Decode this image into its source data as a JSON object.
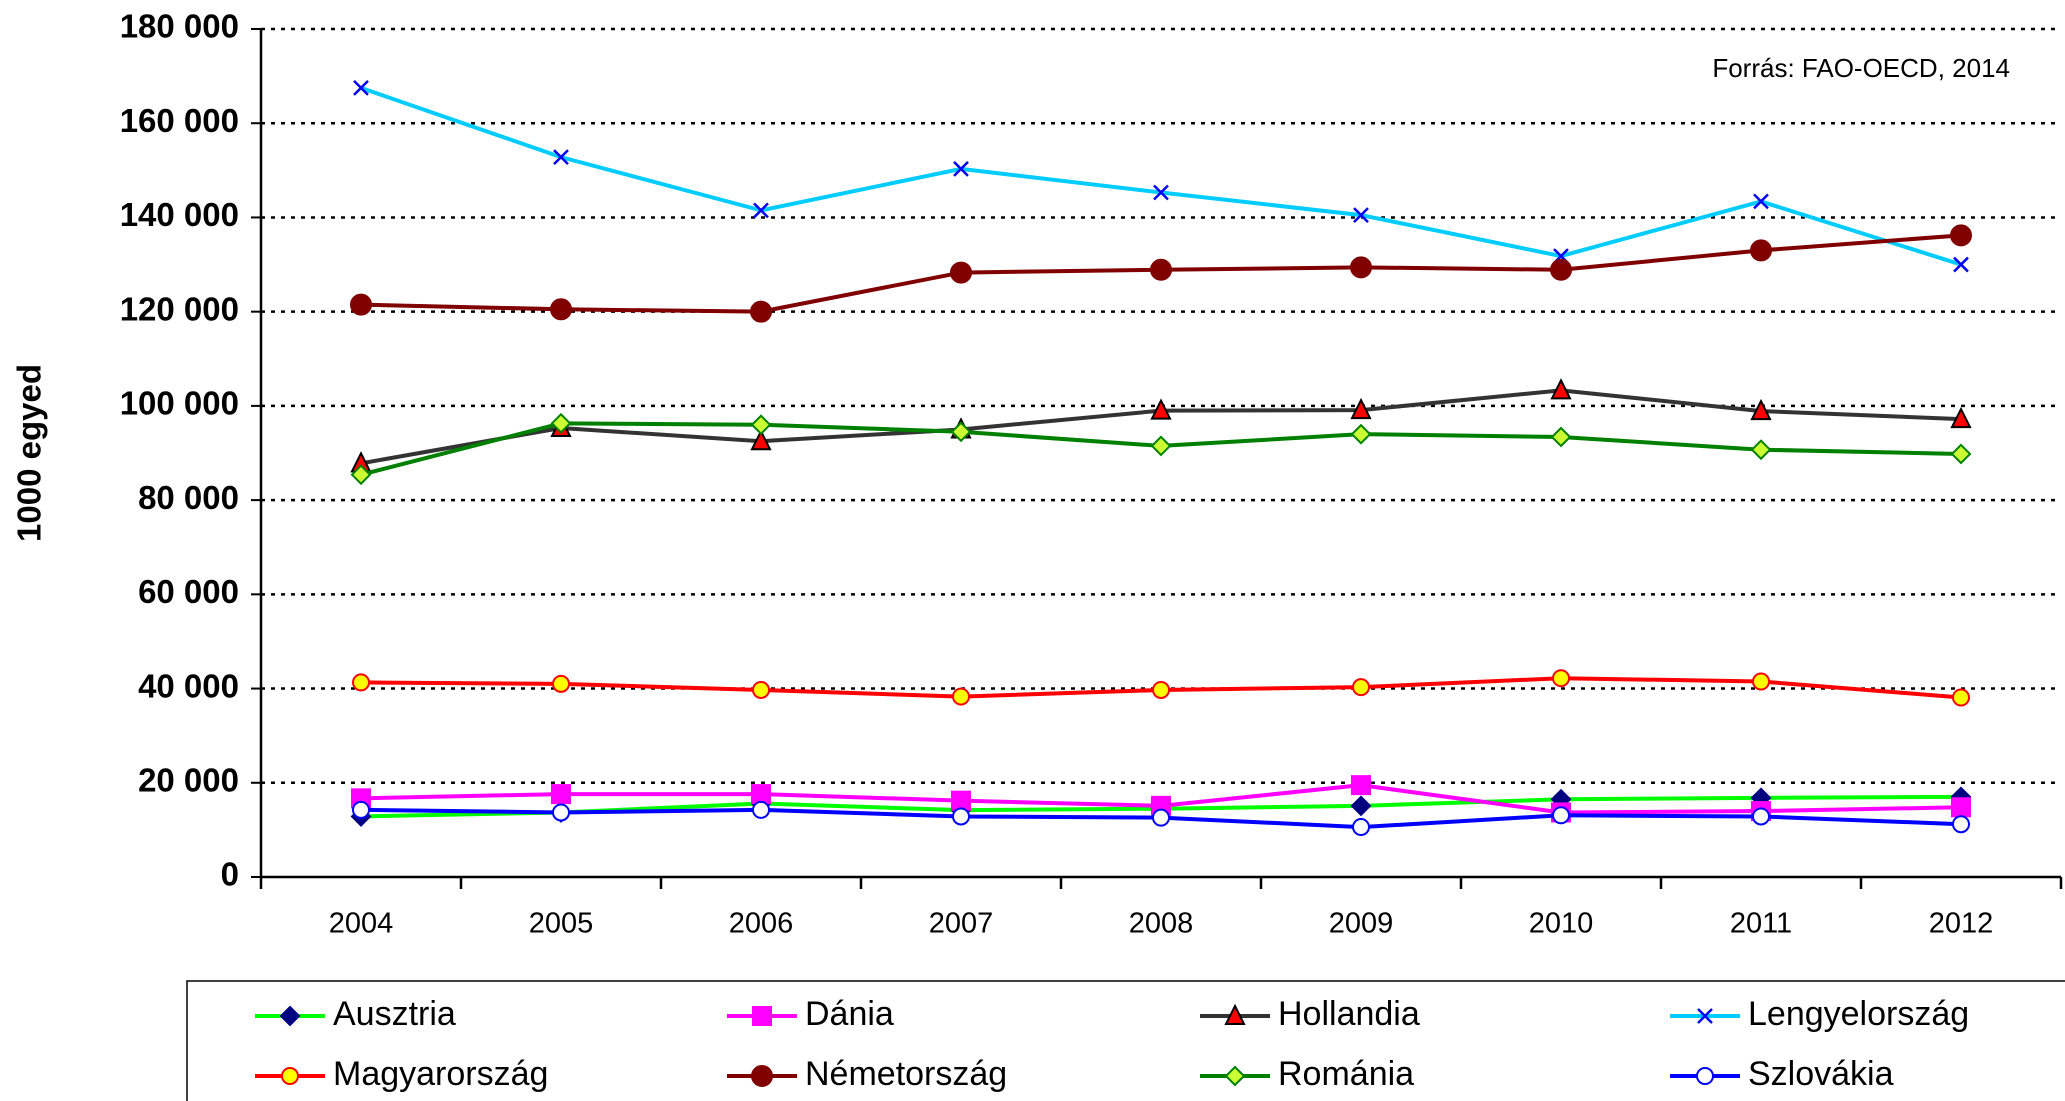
{
  "chart_data": {
    "type": "line",
    "y_label": "1000 egyed",
    "annotation": "Forrás: FAO-OECD, 2014",
    "categories": [
      "2004",
      "2005",
      "2006",
      "2007",
      "2008",
      "2009",
      "2010",
      "2011",
      "2012"
    ],
    "ylim": [
      0,
      180000
    ],
    "yticks": [
      {
        "value": 0,
        "label": "0"
      },
      {
        "value": 20000,
        "label": "20 000"
      },
      {
        "value": 40000,
        "label": "40 000"
      },
      {
        "value": 60000,
        "label": "60 000"
      },
      {
        "value": 80000,
        "label": "80 000"
      },
      {
        "value": 100000,
        "label": "100 000"
      },
      {
        "value": 120000,
        "label": "120 000"
      },
      {
        "value": 140000,
        "label": "140 000"
      },
      {
        "value": 160000,
        "label": "160 000"
      },
      {
        "value": 180000,
        "label": "180 000"
      }
    ],
    "grid": true,
    "legend": "bottom",
    "series": [
      {
        "name": "Ausztria",
        "color": "#00ff00",
        "marker": "diamond",
        "marker_fill": "#000080",
        "marker_stroke": "#000080",
        "values": [
          12850,
          13700,
          15600,
          14200,
          14500,
          15100,
          16500,
          16800,
          17000
        ]
      },
      {
        "name": "Dánia",
        "color": "#ff00ff",
        "marker": "square",
        "marker_fill": "#ff00ff",
        "marker_stroke": "#ff00ff",
        "values": [
          16700,
          17600,
          17600,
          16200,
          15100,
          19500,
          13700,
          14000,
          14800
        ]
      },
      {
        "name": "Hollandia",
        "color": "#333333",
        "marker": "triangle",
        "marker_fill": "#ff0000",
        "marker_stroke": "#000000",
        "values": [
          87800,
          95300,
          92500,
          95000,
          99000,
          99100,
          103300,
          98900,
          97200
        ]
      },
      {
        "name": "Lengyelország",
        "color": "#00ccff",
        "marker": "x",
        "marker_fill": "none",
        "marker_stroke": "#0000ff",
        "values": [
          167500,
          152800,
          141500,
          150300,
          145300,
          140500,
          131800,
          143400,
          130000
        ]
      },
      {
        "name": "Magyarország",
        "color": "#ff0000",
        "marker": "circle",
        "marker_fill": "#ffff00",
        "marker_stroke": "#ff0000",
        "values": [
          41300,
          41000,
          39700,
          38300,
          39700,
          40300,
          42200,
          41500,
          38100
        ]
      },
      {
        "name": "Németország",
        "color": "#800000",
        "marker": "circle",
        "marker_fill": "#800000",
        "marker_stroke": "#800000",
        "values": [
          121500,
          120500,
          120000,
          128300,
          128900,
          129400,
          128900,
          133000,
          136200
        ]
      },
      {
        "name": "Románia",
        "color": "#008000",
        "marker": "diamond",
        "marker_fill": "#ccff33",
        "marker_stroke": "#008000",
        "values": [
          85400,
          96300,
          96000,
          94500,
          91500,
          94000,
          93400,
          90700,
          89800
        ]
      },
      {
        "name": "Szlovákia",
        "color": "#0000ff",
        "marker": "circle",
        "marker_fill": "#ffffff",
        "marker_stroke": "#0000ff",
        "values": [
          14250,
          13700,
          14250,
          12850,
          12600,
          10600,
          13100,
          12850,
          11200
        ]
      }
    ]
  }
}
